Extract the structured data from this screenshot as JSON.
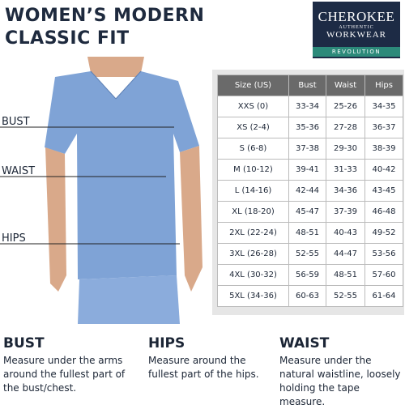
{
  "header": {
    "title_lines": [
      "WOMEN’S MODERN",
      "CLASSIC FIT"
    ]
  },
  "logo": {
    "brand": "CHEROKEE",
    "tagline": "AUTHENTIC",
    "line": "WORKWEAR",
    "collection": "REVOLUTION"
  },
  "figure": {
    "labels": [
      "BUST",
      "WAIST",
      "HIPS"
    ]
  },
  "table": {
    "columns": [
      "Size (US)",
      "Bust",
      "Waist",
      "Hips"
    ],
    "rows": [
      [
        "XXS (0)",
        "33-34",
        "25-26",
        "34-35"
      ],
      [
        "XS (2-4)",
        "35-36",
        "27-28",
        "36-37"
      ],
      [
        "S (6-8)",
        "37-38",
        "29-30",
        "38-39"
      ],
      [
        "M (10-12)",
        "39-41",
        "31-33",
        "40-42"
      ],
      [
        "L (14-16)",
        "42-44",
        "34-36",
        "43-45"
      ],
      [
        "XL (18-20)",
        "45-47",
        "37-39",
        "46-48"
      ],
      [
        "2XL (22-24)",
        "48-51",
        "40-43",
        "49-52"
      ],
      [
        "3XL (26-28)",
        "52-55",
        "44-47",
        "53-56"
      ],
      [
        "4XL (30-32)",
        "56-59",
        "48-51",
        "57-60"
      ],
      [
        "5XL (34-36)",
        "60-63",
        "52-55",
        "61-64"
      ]
    ]
  },
  "notes": [
    {
      "heading": "BUST",
      "text": "Measure under the arms around the fullest part of the bust/chest."
    },
    {
      "heading": "HIPS",
      "text": "Measure around the fullest part of the hips."
    },
    {
      "heading": "WAIST",
      "text": "Measure under the natural waistline, loosely holding the tape measure."
    }
  ]
}
